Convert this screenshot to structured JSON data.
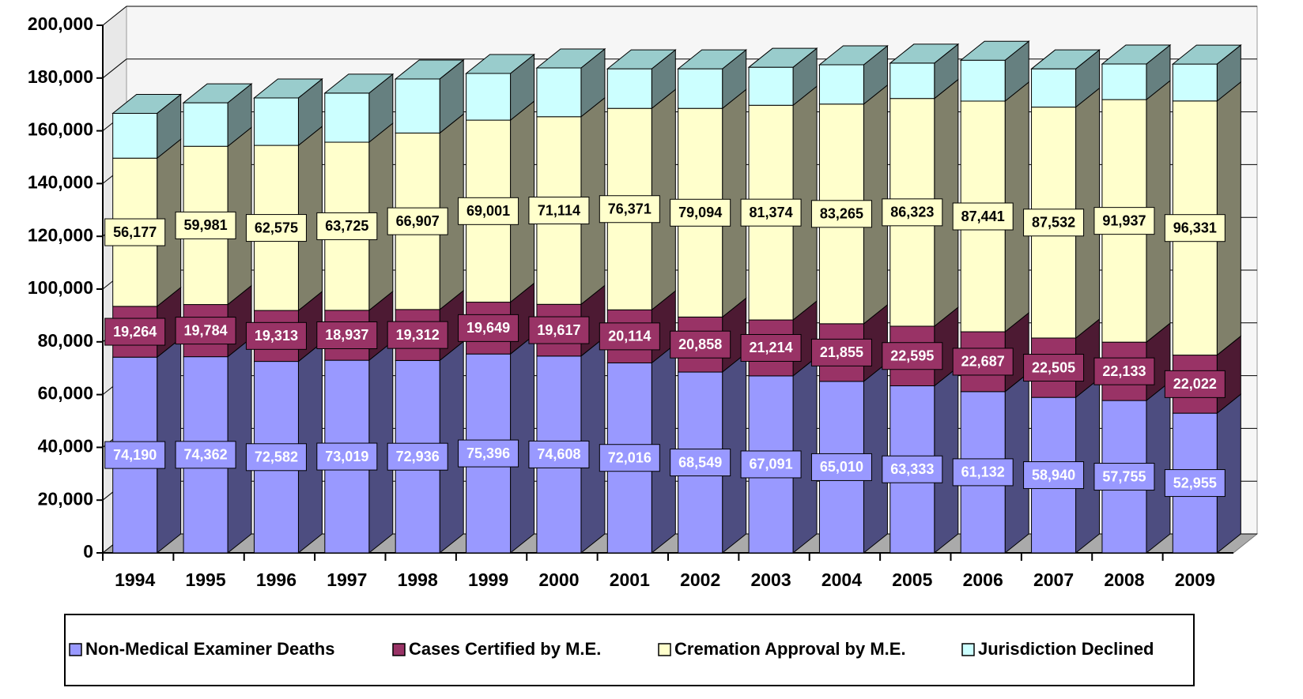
{
  "chart_data": {
    "type": "bar3d_stacked",
    "categories": [
      "1994",
      "1995",
      "1996",
      "1997",
      "1998",
      "1999",
      "2000",
      "2001",
      "2002",
      "2003",
      "2004",
      "2005",
      "2006",
      "2007",
      "2008",
      "2009"
    ],
    "series": [
      {
        "name": "Non-Medical Examiner Deaths",
        "color": "#9999ff",
        "side": "#4d4d80",
        "labelcolor": "#ffffff",
        "values": [
          74190,
          74362,
          72582,
          73019,
          72936,
          75396,
          74608,
          72016,
          68549,
          67091,
          65010,
          63333,
          61132,
          58940,
          57755,
          52955
        ],
        "value_labels": [
          "74,190",
          "74,362",
          "72,582",
          "73,019",
          "72,936",
          "75,396",
          "74,608",
          "72,016",
          "68,549",
          "67,091",
          "65,010",
          "63,333",
          "61,132",
          "58,940",
          "57,755",
          "52,955"
        ]
      },
      {
        "name": "Cases Certified by M.E.",
        "color": "#993366",
        "side": "#4d1a33",
        "labelcolor": "#ffffff",
        "values": [
          19264,
          19784,
          19313,
          18937,
          19312,
          19649,
          19617,
          20114,
          20858,
          21214,
          21855,
          22595,
          22687,
          22505,
          22133,
          22022
        ],
        "value_labels": [
          "19,264",
          "19,784",
          "19,313",
          "18,937",
          "19,312",
          "19,649",
          "19,617",
          "20,114",
          "20,858",
          "21,214",
          "21,855",
          "22,595",
          "22,687",
          "22,505",
          "22,133",
          "22,022"
        ]
      },
      {
        "name": "Cremation Approval by M.E.",
        "color": "#ffffcc",
        "side": "#80806a",
        "labelcolor": "#000000",
        "values": [
          56177,
          59981,
          62575,
          63725,
          66907,
          69001,
          71114,
          76371,
          79094,
          81374,
          83265,
          86323,
          87441,
          87532,
          91937,
          96331
        ],
        "value_labels": [
          "56,177",
          "59,981",
          "62,575",
          "63,725",
          "66,907",
          "69,001",
          "71,114",
          "76,371",
          "79,094",
          "81,374",
          "83,265",
          "86,323",
          "87,441",
          "87,532",
          "91,937",
          "96,331"
        ]
      },
      {
        "name": "Jurisdiction Declined",
        "color": "#ccffff",
        "side": "#668080",
        "values": [
          17000,
          16500,
          18000,
          18600,
          20500,
          17700,
          18500,
          15000,
          15000,
          14400,
          14900,
          13400,
          15500,
          14500,
          13500,
          14000
        ]
      }
    ],
    "ylim": [
      0,
      200000
    ],
    "yticks": [
      0,
      {
        "value": 20000,
        "label": "20,000"
      },
      {
        "value": 40000,
        "label": "40,000"
      },
      {
        "value": 60000,
        "label": "60,000"
      },
      {
        "value": 80000,
        "label": "80,000"
      },
      {
        "value": 100000,
        "label": "100,000"
      },
      {
        "value": 120000,
        "label": "120,000"
      },
      {
        "value": 140000,
        "label": "140,000"
      },
      {
        "value": 160000,
        "label": "160,000"
      },
      {
        "value": 180000,
        "label": "180,000"
      },
      {
        "value": 200000,
        "label": "200,000"
      }
    ],
    "grid": true,
    "legend": "bottom"
  }
}
